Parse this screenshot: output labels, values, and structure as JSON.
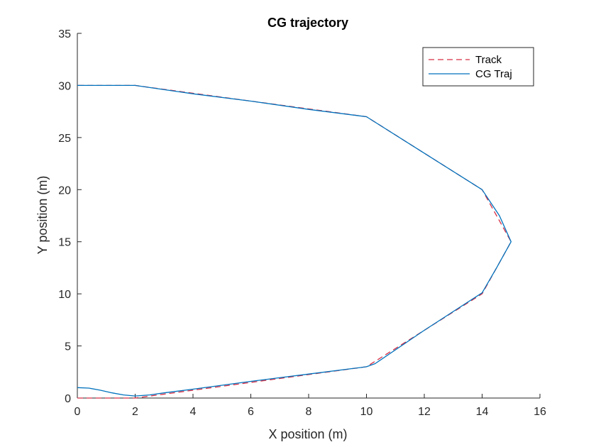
{
  "chart_data": {
    "type": "line",
    "title": "CG trajectory",
    "xlabel": "X position (m)",
    "ylabel": "Y position (m)",
    "xlim": [
      0,
      16
    ],
    "ylim": [
      0,
      35
    ],
    "xticks": [
      0,
      2,
      4,
      6,
      8,
      10,
      12,
      14,
      16
    ],
    "yticks": [
      0,
      5,
      10,
      15,
      20,
      25,
      30,
      35
    ],
    "grid": false,
    "legend_position": "top-right",
    "series": [
      {
        "name": "Track",
        "style": "dashed",
        "color": "#d62f45",
        "points": [
          [
            0,
            0
          ],
          [
            2,
            0
          ],
          [
            10,
            3
          ],
          [
            14,
            10
          ],
          [
            15,
            15
          ],
          [
            14,
            20
          ],
          [
            10,
            27
          ],
          [
            2,
            30
          ],
          [
            0,
            30
          ]
        ]
      },
      {
        "name": "CG Traj",
        "style": "solid",
        "color": "#0072bd",
        "points": [
          [
            0,
            1.0
          ],
          [
            0.4,
            0.95
          ],
          [
            0.8,
            0.75
          ],
          [
            1.2,
            0.5
          ],
          [
            1.6,
            0.3
          ],
          [
            2.0,
            0.2
          ],
          [
            2.5,
            0.3
          ],
          [
            3.0,
            0.5
          ],
          [
            4.0,
            0.85
          ],
          [
            6.0,
            1.6
          ],
          [
            8.0,
            2.3
          ],
          [
            10.0,
            3.0
          ],
          [
            10.3,
            3.3
          ],
          [
            12.0,
            6.5
          ],
          [
            14.0,
            10.1
          ],
          [
            14.5,
            12.5
          ],
          [
            15.0,
            15.0
          ],
          [
            14.6,
            17.5
          ],
          [
            14.0,
            20.0
          ],
          [
            12.0,
            23.5
          ],
          [
            10.0,
            27.0
          ],
          [
            8.0,
            27.7
          ],
          [
            6.0,
            28.5
          ],
          [
            4.0,
            29.2
          ],
          [
            2.0,
            30.0
          ],
          [
            1.0,
            30.0
          ],
          [
            0,
            30.0
          ]
        ]
      }
    ]
  }
}
